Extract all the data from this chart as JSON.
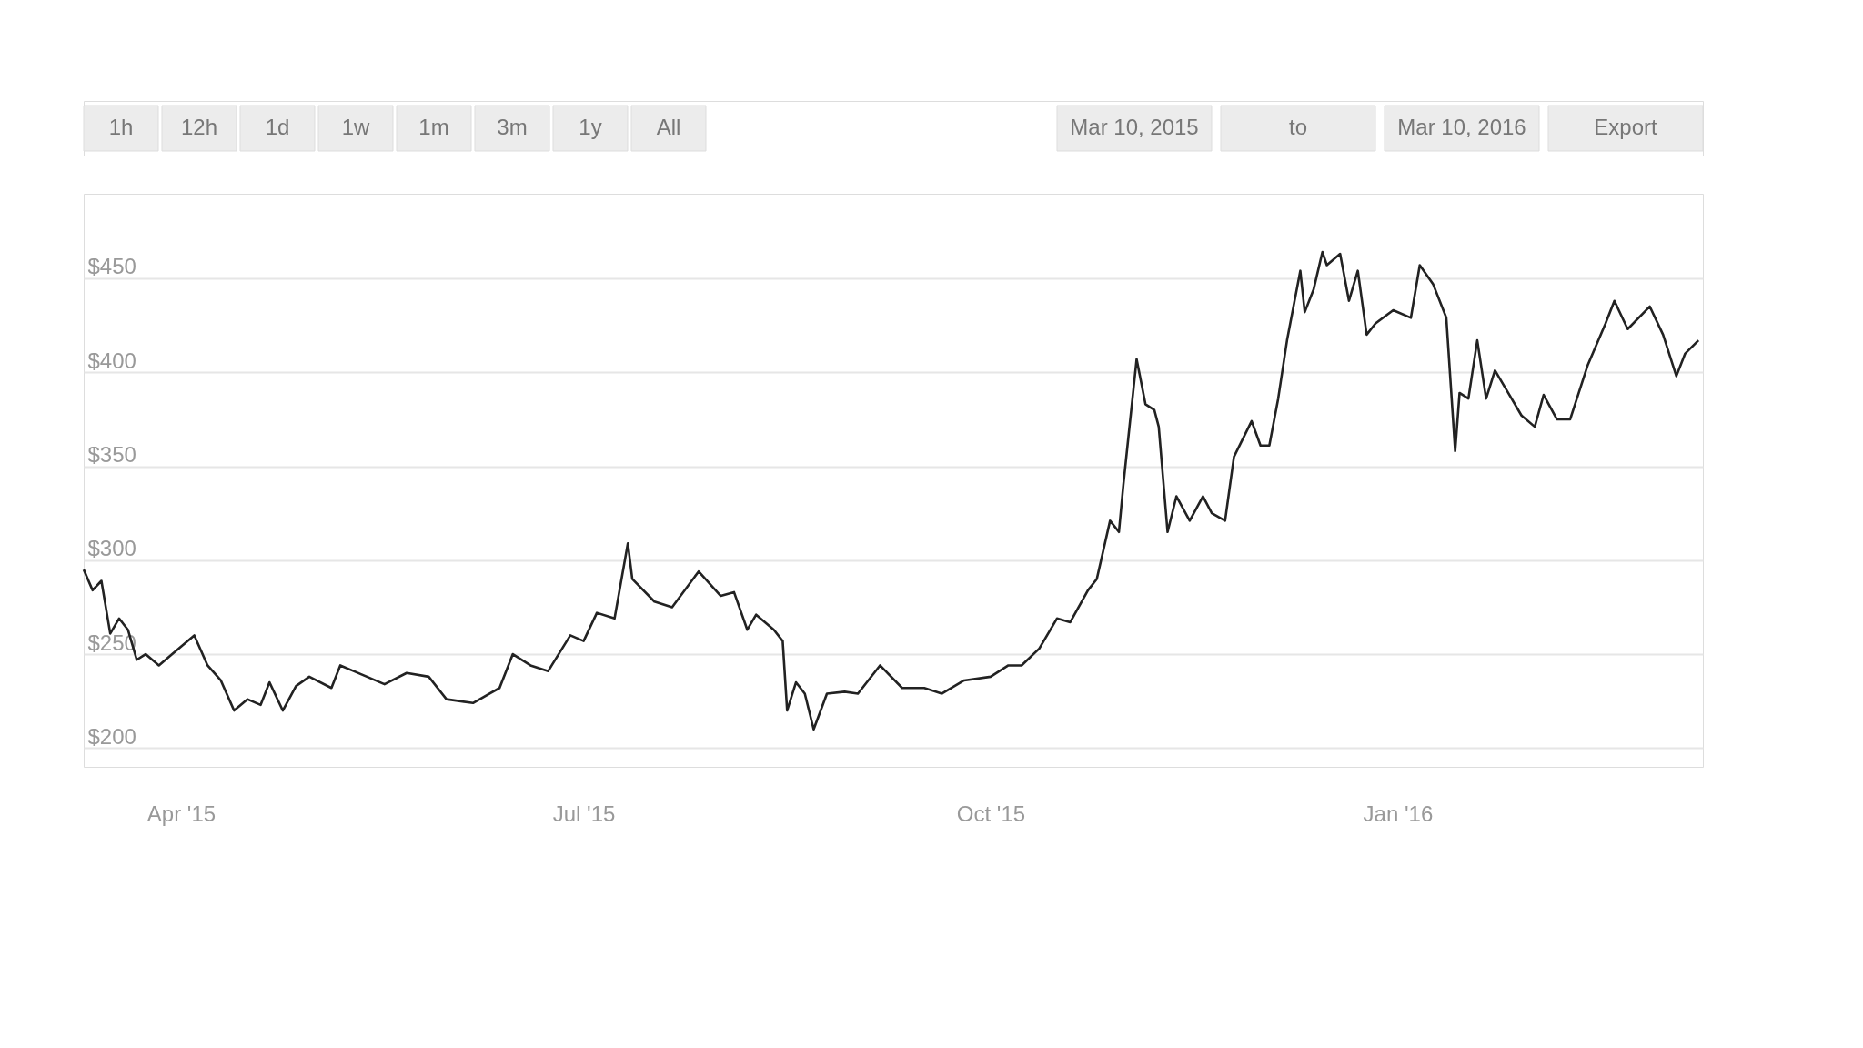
{
  "chart_data": {
    "type": "line",
    "annotations": [
      "1h",
      "12h",
      "1d",
      "1w",
      "1m",
      "3m",
      "1y",
      "All",
      "Mar 10, 2015",
      "to",
      "Mar 10, 2016",
      "Export"
    ],
    "x": [
      "2015-03-10",
      "2015-03-12",
      "2015-03-14",
      "2015-03-16",
      "2015-03-18",
      "2015-03-20",
      "2015-03-22",
      "2015-03-24",
      "2015-03-27",
      "2015-03-30",
      "2015-04-04",
      "2015-04-07",
      "2015-04-10",
      "2015-04-13",
      "2015-04-16",
      "2015-04-19",
      "2015-04-21",
      "2015-04-24",
      "2015-04-27",
      "2015-04-30",
      "2015-05-05",
      "2015-05-07",
      "2015-05-10",
      "2015-05-17",
      "2015-05-22",
      "2015-05-27",
      "2015-05-31",
      "2015-06-06",
      "2015-06-12",
      "2015-06-15",
      "2015-06-19",
      "2015-06-23",
      "2015-06-28",
      "2015-07-01",
      "2015-07-04",
      "2015-07-08",
      "2015-07-11",
      "2015-07-12",
      "2015-07-17",
      "2015-07-21",
      "2015-07-27",
      "2015-08-01",
      "2015-08-04",
      "2015-08-07",
      "2015-08-09",
      "2015-08-13",
      "2015-08-15",
      "2015-08-16",
      "2015-08-18",
      "2015-08-20",
      "2015-08-22",
      "2015-08-25",
      "2015-08-29",
      "2015-09-01",
      "2015-09-06",
      "2015-09-11",
      "2015-09-16",
      "2015-09-20",
      "2015-09-25",
      "2015-10-01",
      "2015-10-05",
      "2015-10-08",
      "2015-10-12",
      "2015-10-16",
      "2015-10-19",
      "2015-10-23",
      "2015-10-25",
      "2015-10-28",
      "2015-10-30",
      "2015-10-31",
      "2015-11-03",
      "2015-11-05",
      "2015-11-07",
      "2015-11-08",
      "2015-11-10",
      "2015-11-12",
      "2015-11-15",
      "2015-11-18",
      "2015-11-20",
      "2015-11-23",
      "2015-11-25",
      "2015-11-29",
      "2015-12-01",
      "2015-12-03",
      "2015-12-05",
      "2015-12-07",
      "2015-12-10",
      "2015-12-11",
      "2015-12-13",
      "2015-12-15",
      "2015-12-16",
      "2015-12-19",
      "2015-12-21",
      "2015-12-23",
      "2015-12-25",
      "2015-12-27",
      "2015-12-31",
      "2016-01-04",
      "2016-01-06",
      "2016-01-09",
      "2016-01-12",
      "2016-01-14",
      "2016-01-15",
      "2016-01-17",
      "2016-01-19",
      "2016-01-21",
      "2016-01-23",
      "2016-01-26",
      "2016-01-29",
      "2016-02-01",
      "2016-02-03",
      "2016-02-06",
      "2016-02-09",
      "2016-02-13",
      "2016-02-17",
      "2016-02-19",
      "2016-02-22",
      "2016-02-27",
      "2016-03-01",
      "2016-03-04",
      "2016-03-06",
      "2016-03-09"
    ],
    "series": [
      {
        "color": "#222222",
        "values": [
          295,
          284,
          289,
          261,
          269,
          263,
          247,
          250,
          244,
          250,
          260,
          244,
          236,
          220,
          226,
          223,
          235,
          220,
          233,
          238,
          232,
          244,
          241,
          234,
          240,
          238,
          226,
          224,
          232,
          250,
          244,
          241,
          260,
          257,
          272,
          269,
          309,
          290,
          278,
          275,
          294,
          281,
          283,
          263,
          271,
          263,
          257,
          220,
          235,
          229,
          210,
          229,
          230,
          229,
          244,
          232,
          232,
          229,
          236,
          238,
          244,
          244,
          253,
          269,
          267,
          284,
          290,
          321,
          315,
          340,
          407,
          383,
          380,
          371,
          315,
          334,
          321,
          334,
          325,
          321,
          355,
          374,
          361,
          361,
          386,
          417,
          454,
          432,
          444,
          464,
          457,
          463,
          438,
          454,
          420,
          426,
          433,
          429,
          457,
          447,
          429,
          358,
          389,
          386,
          417,
          386,
          401,
          389,
          377,
          371,
          388,
          375,
          375,
          404,
          426,
          438,
          423,
          435,
          420,
          398,
          410,
          417
        ]
      }
    ],
    "xlim": [
      "2015-03-10",
      "2016-03-10"
    ],
    "xticks": [
      {
        "value": "2015-04-01",
        "label": "Apr '15"
      },
      {
        "value": "2015-07-01",
        "label": "Jul '15"
      },
      {
        "value": "2015-10-01",
        "label": "Oct '15"
      },
      {
        "value": "2016-01-01",
        "label": "Jan '16"
      }
    ],
    "ylim": [
      190,
      495
    ],
    "yticks": [
      {
        "value": 200,
        "label": "$200"
      },
      {
        "value": 250,
        "label": "$250"
      },
      {
        "value": 300,
        "label": "$300"
      },
      {
        "value": 350,
        "label": "$350"
      },
      {
        "value": 400,
        "label": "$400"
      },
      {
        "value": 450,
        "label": "$450"
      }
    ],
    "grid": "y",
    "marker": "none",
    "line_style": "solid"
  }
}
